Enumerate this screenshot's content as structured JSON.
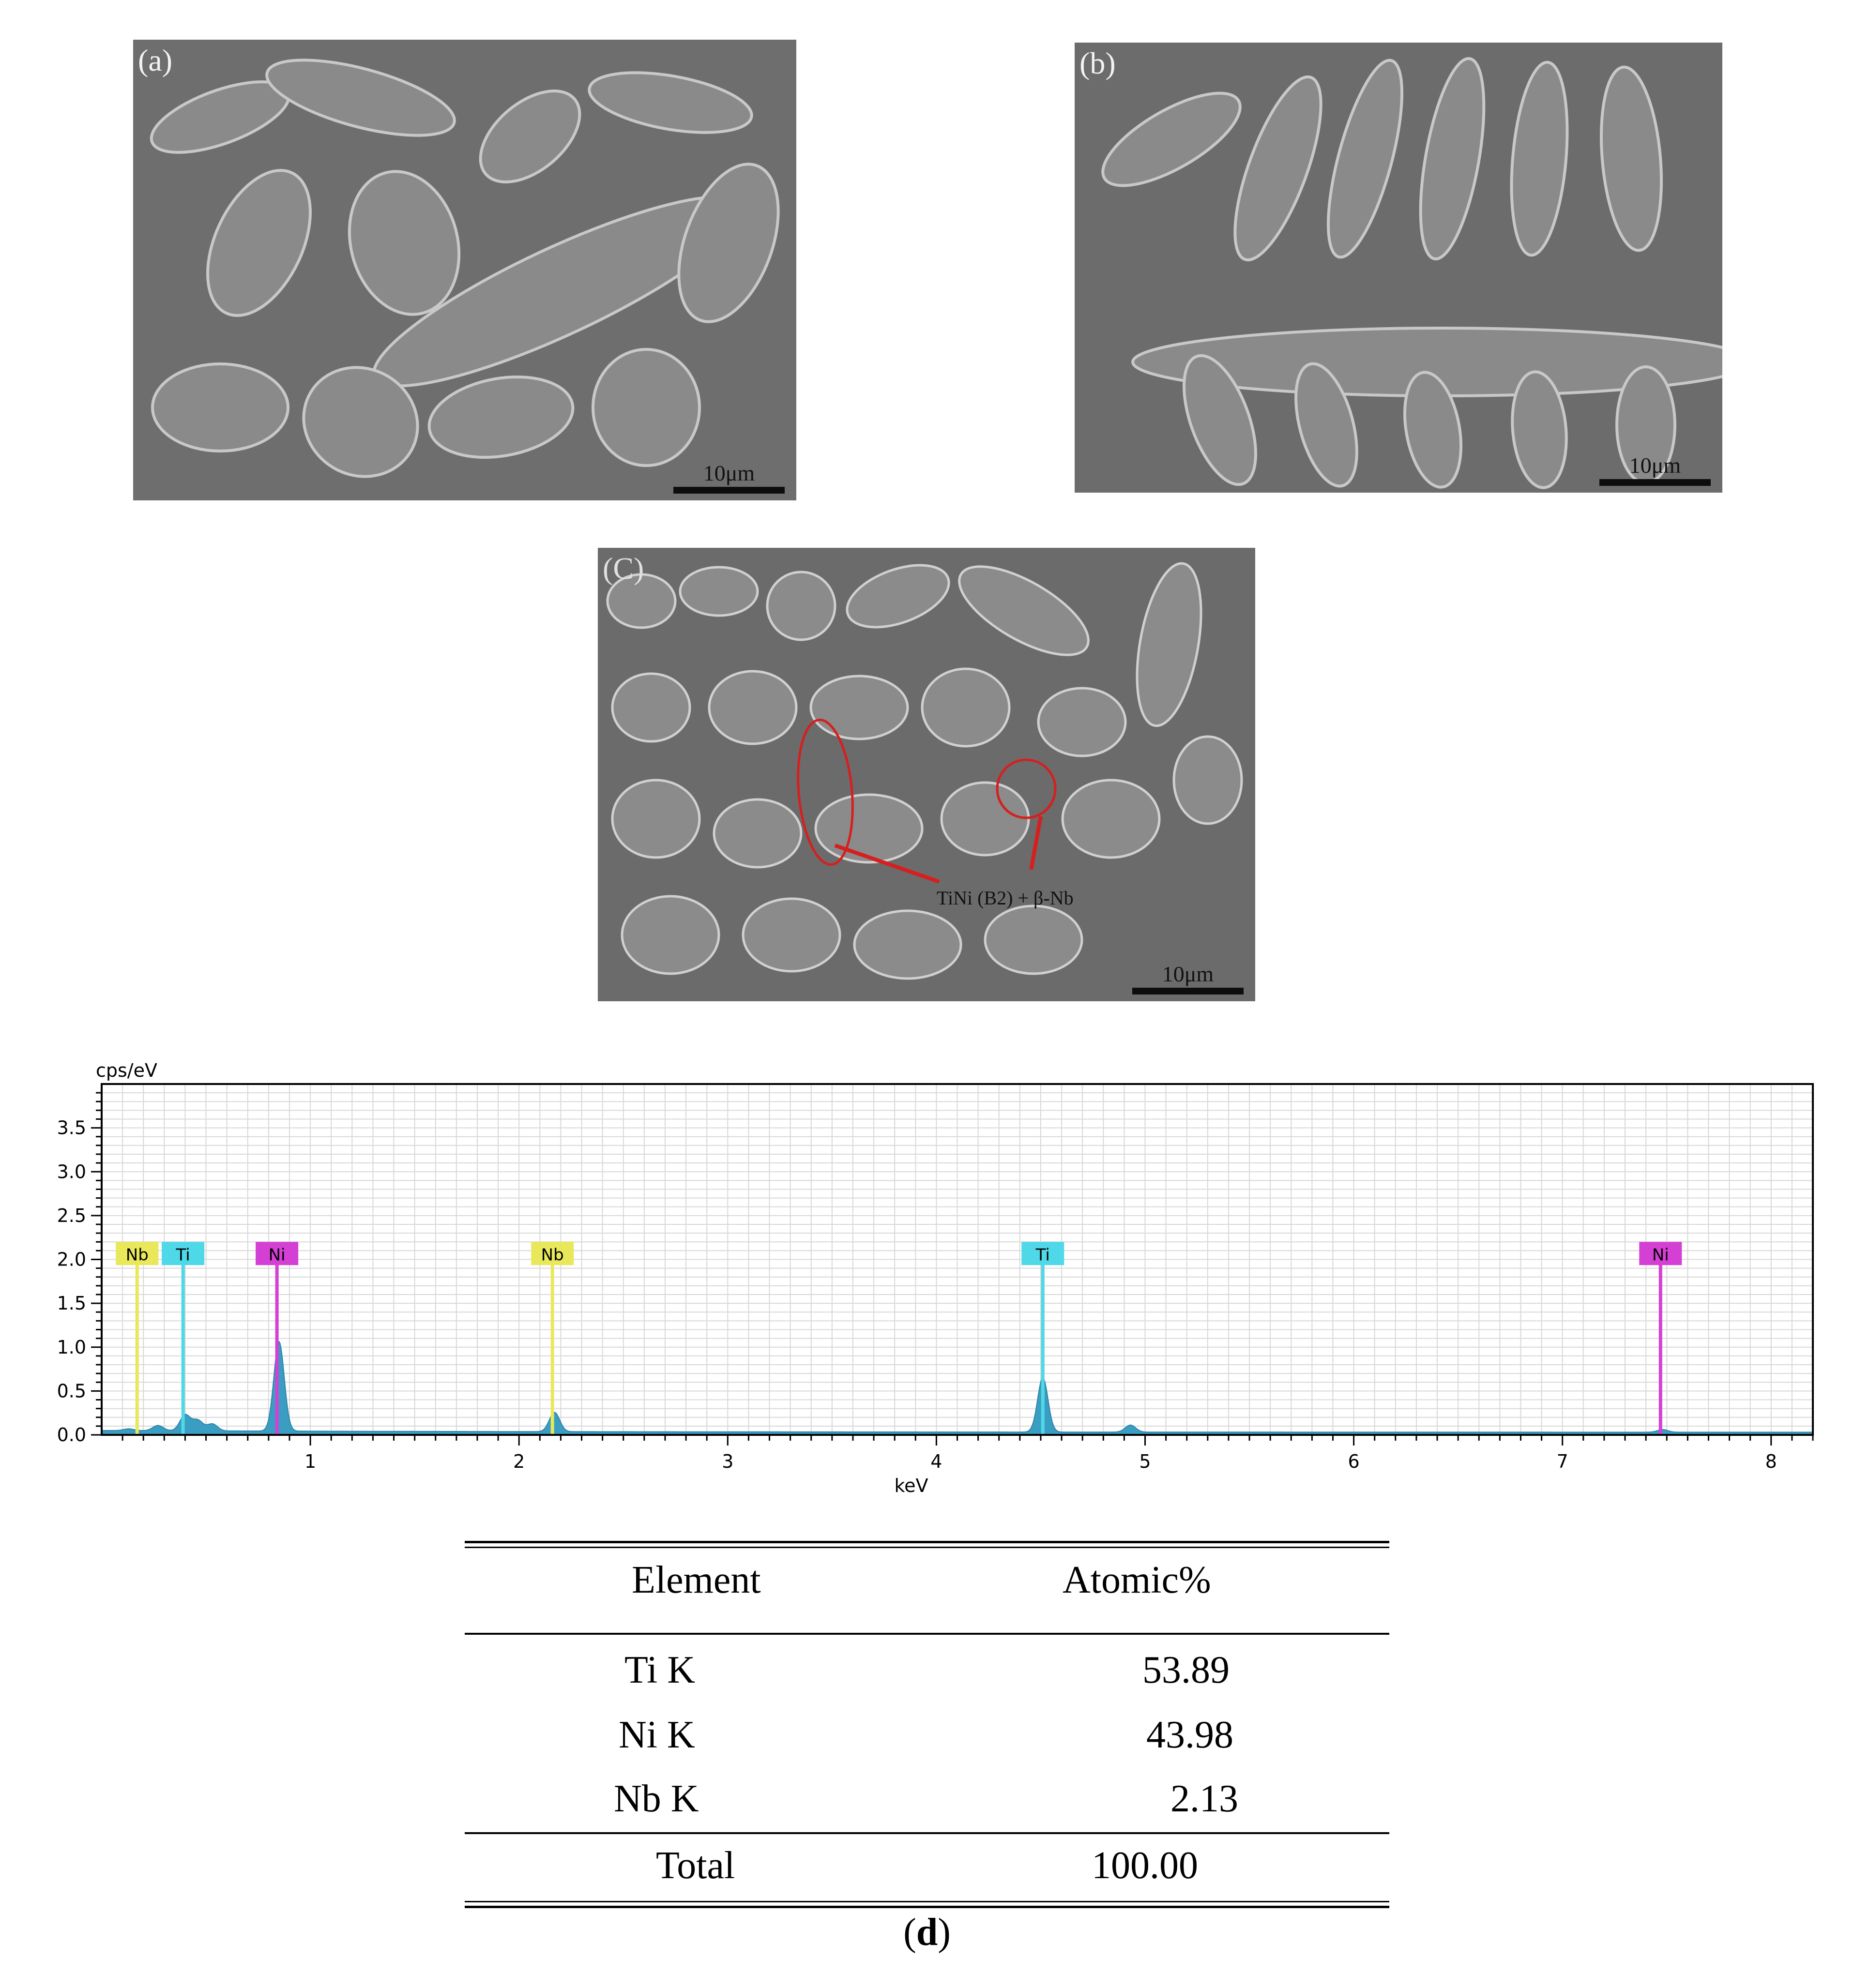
{
  "panels": {
    "a": {
      "label": "(a)",
      "scale": "10μm"
    },
    "b": {
      "label": "(b)",
      "scale": "10μm"
    },
    "c": {
      "label": "(C)",
      "scale": "10μm",
      "annotation": "TiNi (B2) + β-Nb"
    }
  },
  "chart_data": {
    "type": "area",
    "ylabel": "cps/eV",
    "xlabel": "keV",
    "xlim": [
      0.0,
      8.2
    ],
    "ylim": [
      0,
      4.0
    ],
    "x_ticks": [
      1,
      2,
      3,
      4,
      5,
      6,
      7,
      8
    ],
    "y_ticks": [
      0.0,
      0.5,
      1.0,
      1.5,
      2.0,
      2.5,
      3.0,
      3.5
    ],
    "grid": true,
    "peaks": [
      {
        "x": 0.13,
        "y": 0.02
      },
      {
        "x": 0.27,
        "y": 0.06
      },
      {
        "x": 0.4,
        "y": 0.18
      },
      {
        "x": 0.46,
        "y": 0.12
      },
      {
        "x": 0.53,
        "y": 0.08
      },
      {
        "x": 0.85,
        "y": 1.02
      },
      {
        "x": 2.17,
        "y": 0.22
      },
      {
        "x": 4.51,
        "y": 0.62
      },
      {
        "x": 4.93,
        "y": 0.08
      },
      {
        "x": 7.48,
        "y": 0.03
      }
    ],
    "element_markers": [
      {
        "element": "Nb",
        "x": 0.17,
        "color": "#e8e85a"
      },
      {
        "element": "Ti",
        "x": 0.39,
        "color": "#4fd8e8"
      },
      {
        "element": "Ni",
        "x": 0.84,
        "color": "#d43fd4"
      },
      {
        "element": "Nb",
        "x": 2.16,
        "color": "#e8e85a"
      },
      {
        "element": "Ti",
        "x": 4.51,
        "color": "#4fd8e8"
      },
      {
        "element": "Ni",
        "x": 7.47,
        "color": "#d43fd4"
      }
    ],
    "fill_color": "#3a9ec2"
  },
  "table": {
    "headers": [
      "Element",
      "Atomic%"
    ],
    "rows": [
      {
        "element": "Ti K",
        "value": "53.89"
      },
      {
        "element": "Ni K",
        "value": "43.98"
      },
      {
        "element": "Nb K",
        "value": "2.13"
      }
    ],
    "total": {
      "label": "Total",
      "value": "100.00"
    }
  },
  "caption": {
    "open": "(",
    "letter": "d",
    "close": ")"
  }
}
